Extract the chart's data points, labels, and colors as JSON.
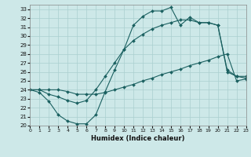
{
  "xlabel": "Humidex (Indice chaleur)",
  "bg_color": "#cde8e8",
  "grid_color": "#aacfcf",
  "line_color": "#1a6060",
  "xlim": [
    0,
    23
  ],
  "ylim": [
    20,
    33.5
  ],
  "xticks": [
    0,
    1,
    2,
    3,
    4,
    5,
    6,
    7,
    8,
    9,
    10,
    11,
    12,
    13,
    14,
    15,
    16,
    17,
    18,
    19,
    20,
    21,
    22,
    23
  ],
  "yticks": [
    20,
    21,
    22,
    23,
    24,
    25,
    26,
    27,
    28,
    29,
    30,
    31,
    32,
    33
  ],
  "line_jagged_x": [
    0,
    1,
    2,
    3,
    4,
    5,
    6,
    7,
    8,
    9,
    10,
    11,
    12,
    13,
    14,
    15,
    16,
    17,
    18,
    19,
    20,
    21,
    22,
    23
  ],
  "line_jagged_y": [
    24.0,
    23.7,
    22.7,
    21.2,
    20.5,
    20.2,
    20.2,
    21.2,
    23.8,
    26.2,
    28.5,
    31.2,
    32.2,
    32.8,
    32.8,
    33.2,
    31.2,
    32.1,
    31.5,
    31.5,
    31.2,
    26.2,
    25.5,
    25.5
  ],
  "line_mid_x": [
    0,
    1,
    2,
    3,
    4,
    5,
    6,
    7,
    8,
    9,
    10,
    11,
    12,
    13,
    14,
    15,
    16,
    17,
    18,
    19,
    20,
    21,
    22,
    23
  ],
  "line_mid_y": [
    24.0,
    24.0,
    23.5,
    23.2,
    22.8,
    22.5,
    22.8,
    24.0,
    25.5,
    27.0,
    28.5,
    29.5,
    30.2,
    30.8,
    31.2,
    31.5,
    31.8,
    31.8,
    31.5,
    31.5,
    31.2,
    26.0,
    25.5,
    25.3
  ],
  "line_low_x": [
    0,
    1,
    2,
    3,
    4,
    5,
    6,
    7,
    8,
    9,
    10,
    11,
    12,
    13,
    14,
    15,
    16,
    17,
    18,
    19,
    20,
    21,
    22,
    23
  ],
  "line_low_y": [
    24.0,
    24.0,
    24.0,
    24.0,
    23.8,
    23.5,
    23.5,
    23.5,
    23.7,
    24.0,
    24.3,
    24.6,
    25.0,
    25.3,
    25.7,
    26.0,
    26.3,
    26.7,
    27.0,
    27.3,
    27.7,
    28.0,
    25.0,
    25.2
  ]
}
